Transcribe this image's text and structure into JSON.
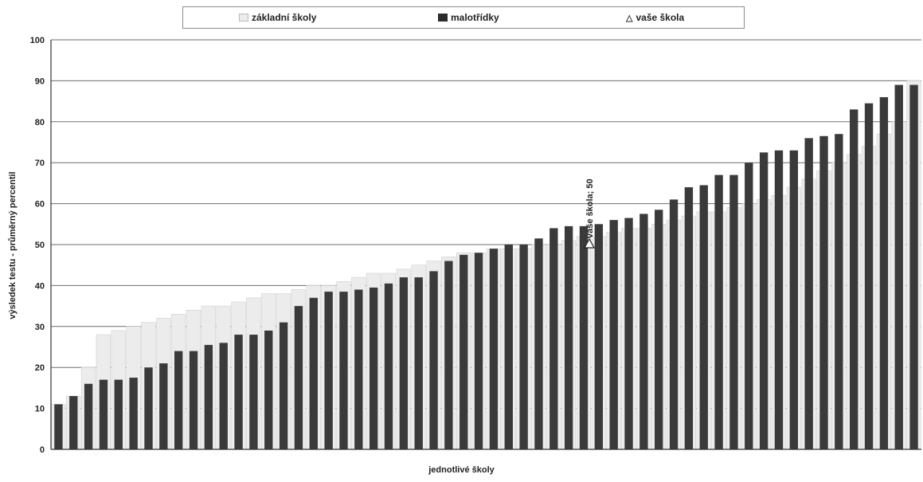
{
  "legend": {
    "zakladni_label": "základní školy",
    "malotridky_label": "malotřídky",
    "vase_label": "vaše škola"
  },
  "colors": {
    "zakladni": "#ececec",
    "malotridky": "#3a3a3a",
    "vase_skola": "#ffffff",
    "grid": "#6e6e6e",
    "axis": "#333333"
  },
  "icons": {
    "zakladni_swatch": "light-square",
    "malotridky_swatch": "dark-square",
    "vase_marker": "triangle-outline-icon"
  },
  "chart_data": {
    "type": "bar",
    "xlabel": "jednotlivé školy",
    "ylabel": "výsledek testu - průměrný percentil",
    "ylim": [
      0,
      100
    ],
    "yticks": [
      0,
      10,
      20,
      30,
      40,
      50,
      60,
      70,
      80,
      90,
      100
    ],
    "grid": true,
    "legend_position": "top",
    "series": [
      {
        "name": "základní školy",
        "values": [
          11,
          13,
          20,
          28,
          29,
          30,
          31,
          32,
          33,
          34,
          35,
          35,
          36,
          37,
          38,
          38,
          39,
          40,
          40,
          41,
          42,
          43,
          43,
          44,
          45,
          46,
          47,
          48,
          48,
          49,
          49,
          49,
          50,
          50,
          51,
          52,
          52,
          53,
          54,
          54,
          55,
          56,
          57,
          58,
          58,
          59,
          60,
          61,
          62,
          64,
          66,
          68,
          70,
          72,
          74,
          77,
          80,
          90
        ]
      },
      {
        "name": "malotřídky",
        "values": [
          11,
          13,
          16,
          17,
          17,
          17.5,
          20,
          21,
          24,
          24,
          25.5,
          26,
          28,
          28,
          29,
          31,
          35,
          37,
          38.5,
          38.5,
          39,
          39.5,
          40.5,
          42,
          42,
          43.5,
          46,
          47.5,
          48,
          49,
          50,
          50,
          51.5,
          54,
          54.5,
          54.5,
          55,
          56,
          56.5,
          57.5,
          58.5,
          61,
          64,
          64.5,
          67,
          67,
          70,
          72.5,
          73,
          73,
          76,
          76.5,
          77,
          83,
          84.5,
          86,
          89,
          89
        ]
      }
    ],
    "highlight": {
      "name": "vaše škola",
      "value": 50,
      "label": "vaše škola; 50"
    }
  }
}
